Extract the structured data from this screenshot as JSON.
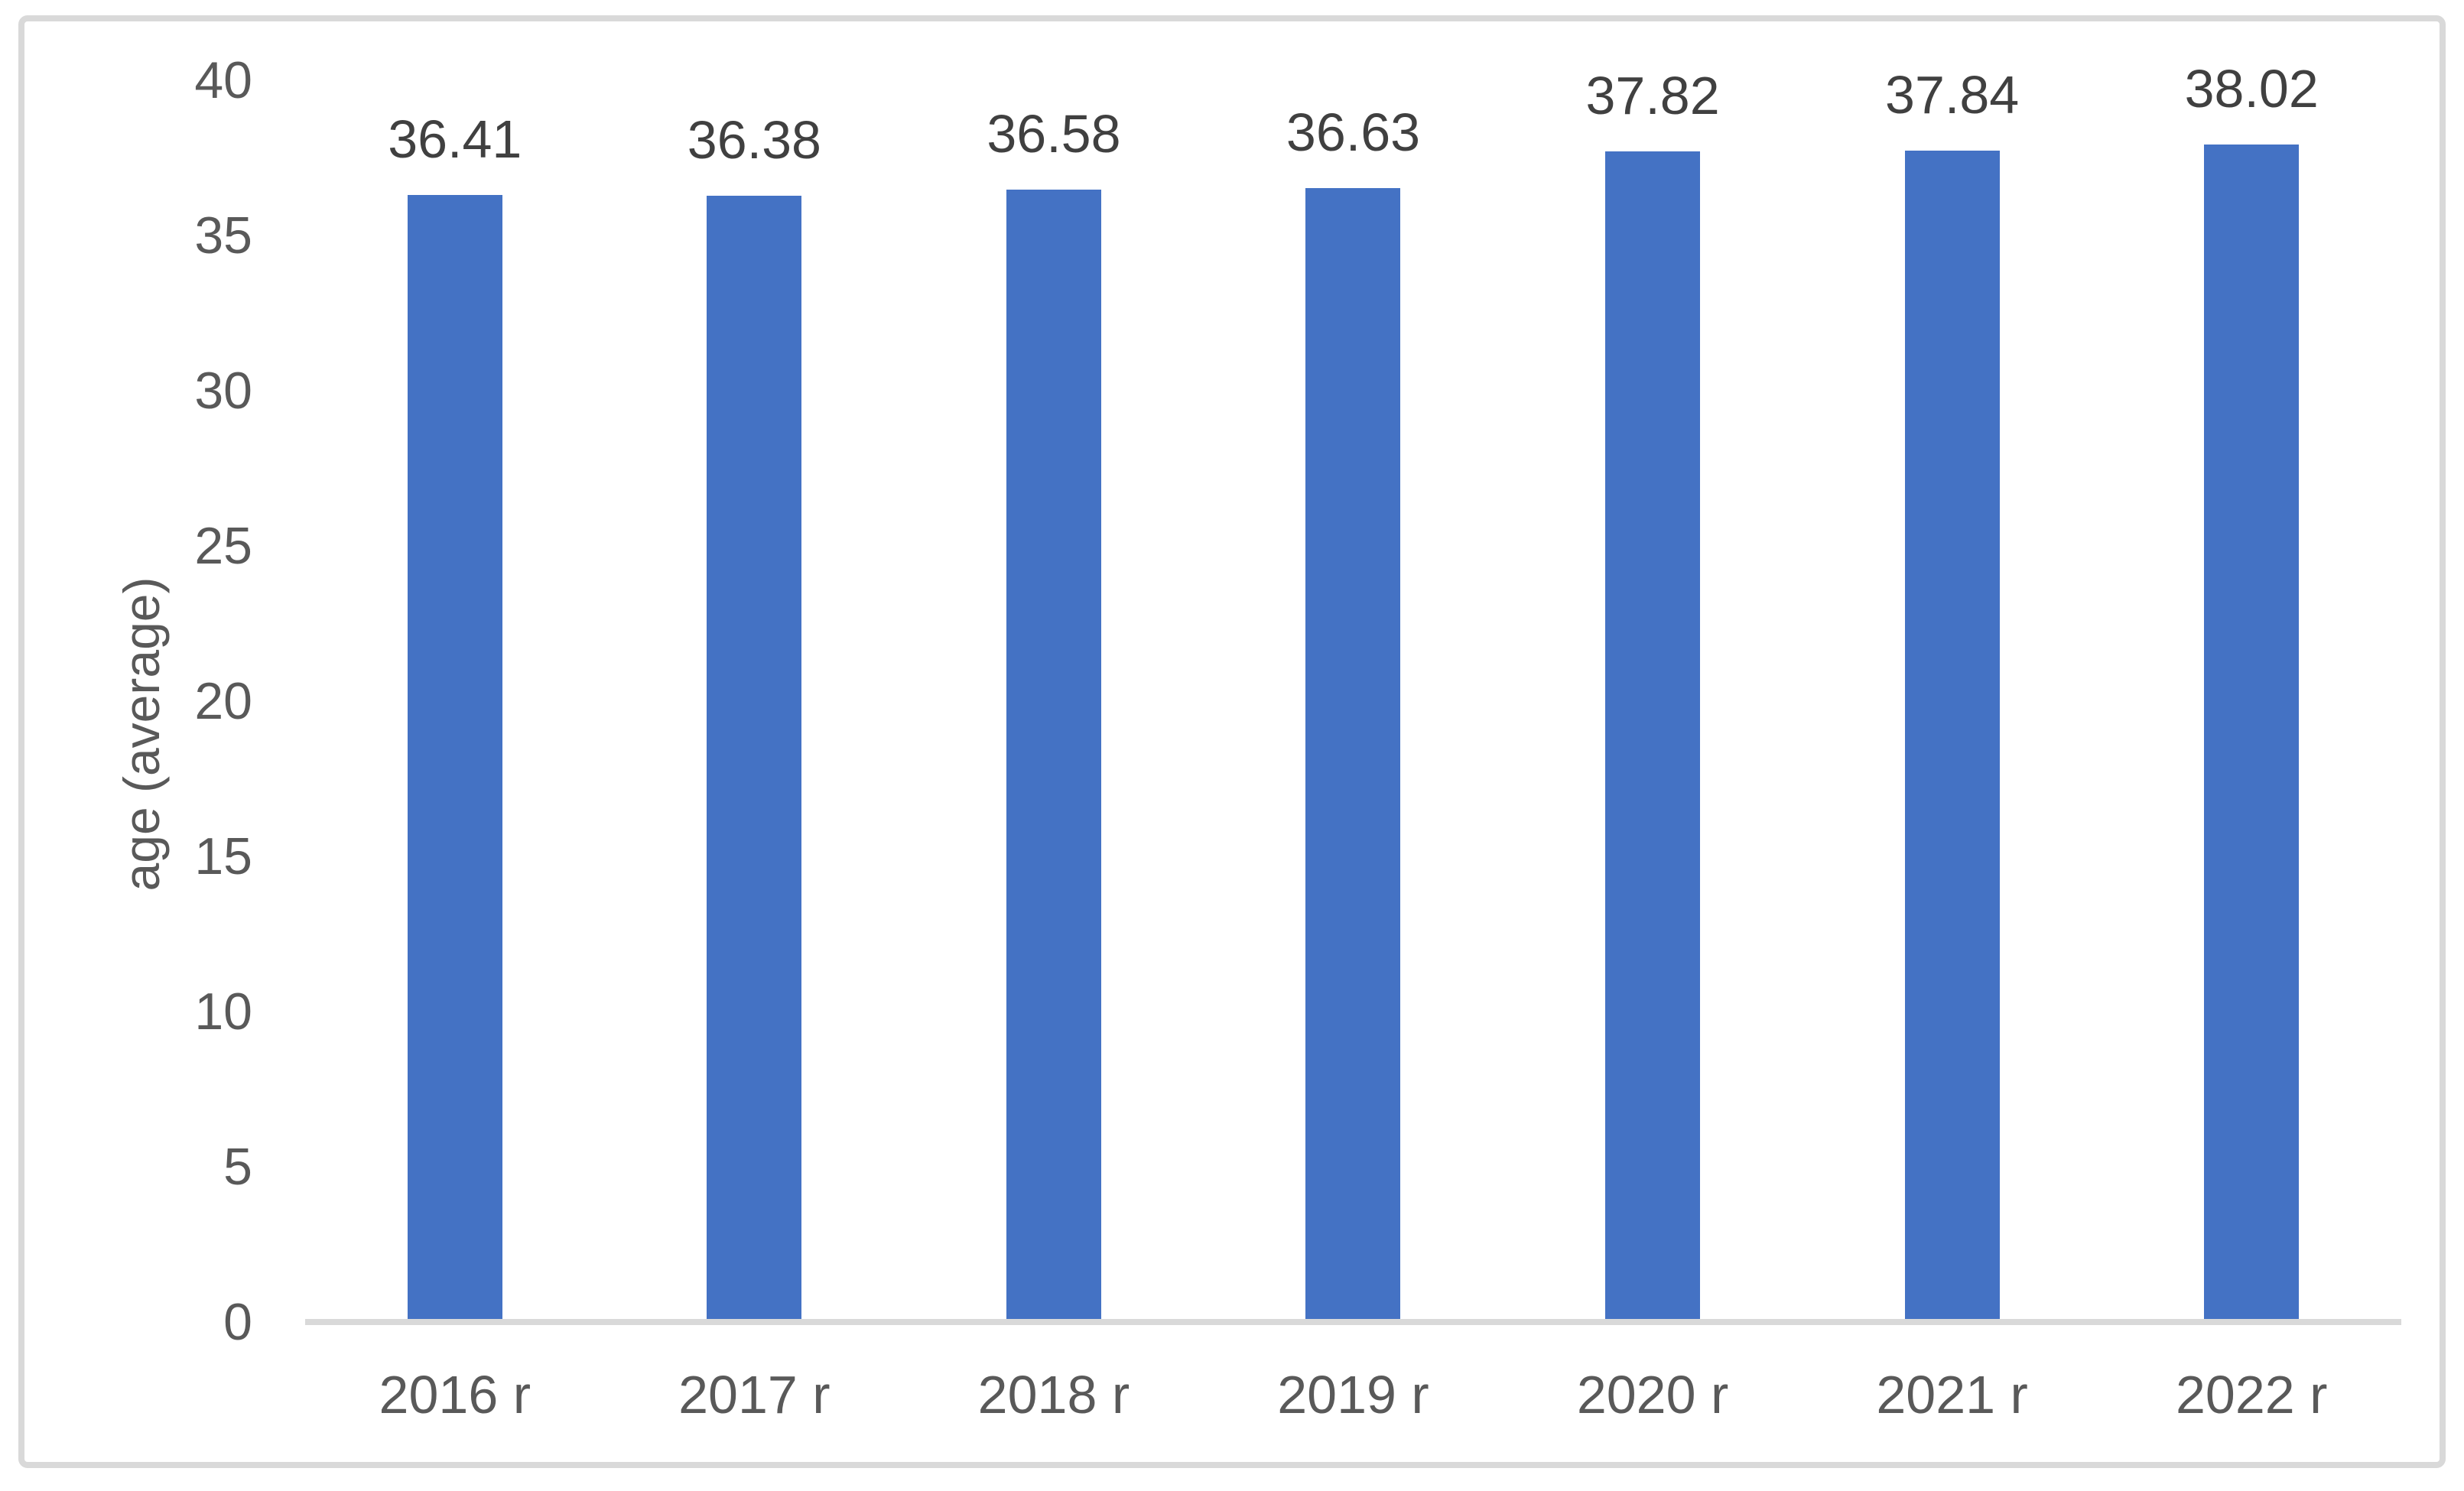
{
  "chart_data": {
    "type": "bar",
    "categories": [
      "2016 r",
      "2017 r",
      "2018 r",
      "2019 r",
      "2020 r",
      "2021 r",
      "2022 r"
    ],
    "values": [
      36.41,
      36.38,
      36.58,
      36.63,
      37.82,
      37.84,
      38.02
    ],
    "value_labels": [
      "36.41",
      "36.38",
      "36.58",
      "36.63",
      "37.82",
      "37.84",
      "38.02"
    ],
    "ylabel": "age (average)",
    "xlabel": "",
    "ylim": [
      0,
      40
    ],
    "yticks": [
      40,
      35,
      30,
      25,
      20,
      15,
      10,
      5,
      0
    ],
    "grid": false,
    "legend": false,
    "colors": {
      "bar": "#4472C4",
      "axis_text": "#595959",
      "value_text": "#404040",
      "axis_line": "#D9D9D9",
      "frame_border": "#D9D9D9",
      "background": "#FFFFFF"
    }
  }
}
